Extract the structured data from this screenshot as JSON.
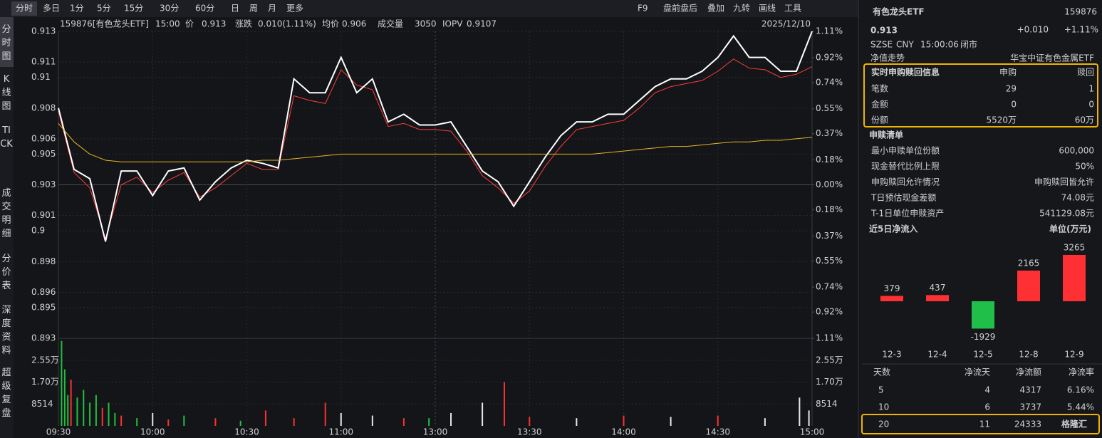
{
  "toolbar": {
    "tabs": [
      "分时",
      "多日",
      "1分",
      "5分",
      "15分",
      "30分",
      "60分",
      "日",
      "周",
      "月",
      "更多"
    ],
    "tools": [
      "F9",
      "盘前盘后",
      "叠加",
      "九转",
      "画线",
      "工具"
    ]
  },
  "side_tabs": [
    "分时图",
    "K线图",
    "TICK",
    "成交明细",
    "分价表",
    "深度资料",
    "超级复盘"
  ],
  "info": {
    "code": "159876[有色龙头ETF]",
    "time": "15:00",
    "fields": [
      {
        "label": "价",
        "value": "0.913"
      },
      {
        "label": "涨跌",
        "value": "0.010(1.11%)"
      },
      {
        "label": "均价",
        "value": "0.906"
      },
      {
        "label": "成交量",
        "value": "3050"
      },
      {
        "label": "IOPV",
        "value": "0.9107"
      }
    ],
    "date": "2025/12/10"
  },
  "chart_data": [
    {
      "type": "line",
      "x": [
        0,
        5,
        10,
        15,
        20,
        25,
        30,
        35,
        40,
        45,
        50,
        55,
        60,
        65,
        70,
        75,
        80,
        85,
        90,
        95,
        100,
        105,
        110,
        115,
        120,
        125,
        130,
        135,
        140,
        145,
        150,
        155,
        160,
        165,
        170,
        175,
        180,
        185,
        190,
        195,
        200,
        205,
        210,
        215,
        220,
        225,
        230,
        235,
        240
      ],
      "xlim": [
        0,
        240
      ],
      "xticks": [
        {
          "value": 0,
          "label": "09:30"
        },
        {
          "value": 30,
          "label": "10:00"
        },
        {
          "value": 60,
          "label": "10:30"
        },
        {
          "value": 90,
          "label": "11:00"
        },
        {
          "value": 120,
          "label": "13:00"
        },
        {
          "value": 150,
          "label": "13:30"
        },
        {
          "value": 180,
          "label": "14:00"
        },
        {
          "value": 210,
          "label": "14:30"
        },
        {
          "value": 240,
          "label": "15:00"
        }
      ],
      "ylim": [
        0.893,
        0.913
      ],
      "yticks": [
        0.913,
        0.911,
        0.91,
        0.908,
        0.906,
        0.905,
        0.903,
        0.901,
        0.9,
        0.898,
        0.896,
        0.895,
        0.893
      ],
      "y2lim": [
        -1.11,
        1.11
      ],
      "y2ticks": [
        {
          "value": 1.11,
          "label": "1.11%"
        },
        {
          "value": 0.92,
          "label": "0.92%"
        },
        {
          "value": 0.74,
          "label": "0.74%"
        },
        {
          "value": 0.55,
          "label": "0.55%"
        },
        {
          "value": 0.37,
          "label": "0.37%"
        },
        {
          "value": 0.18,
          "label": "0.18%"
        },
        {
          "value": 0,
          "label": "0.00%"
        },
        {
          "value": -0.18,
          "label": "0.18%"
        },
        {
          "value": -0.37,
          "label": "0.37%"
        },
        {
          "value": -0.55,
          "label": "0.55%"
        },
        {
          "value": -0.74,
          "label": "0.74%"
        },
        {
          "value": -0.92,
          "label": "0.92%"
        },
        {
          "value": -1.11,
          "label": "1.11%"
        }
      ],
      "grid": true,
      "series": [
        {
          "color": "#ff3b3b",
          "values": [
            0.9078,
            0.9038,
            0.9028,
            0.8995,
            0.903,
            0.9035,
            0.9025,
            0.9033,
            0.9038,
            0.9022,
            0.9028,
            0.9036,
            0.9044,
            0.904,
            0.904,
            0.9088,
            0.9085,
            0.9083,
            0.9105,
            0.9095,
            0.9092,
            0.9068,
            0.907,
            0.9066,
            0.9066,
            0.9065,
            0.9052,
            0.9036,
            0.9028,
            0.9018,
            0.9026,
            0.9042,
            0.9055,
            0.9066,
            0.9068,
            0.907,
            0.9072,
            0.908,
            0.909,
            0.9094,
            0.9096,
            0.9098,
            0.9104,
            0.9112,
            0.9106,
            0.9105,
            0.91,
            0.9102,
            0.9107
          ]
        },
        {
          "color": "#ffffff",
          "values": [
            0.908,
            0.904,
            0.9034,
            0.8993,
            0.9039,
            0.9039,
            0.9023,
            0.9039,
            0.9041,
            0.902,
            0.9032,
            0.9041,
            0.9046,
            0.9044,
            0.9041,
            0.9099,
            0.909,
            0.909,
            0.9113,
            0.909,
            0.9099,
            0.9071,
            0.9076,
            0.9069,
            0.9069,
            0.9071,
            0.9055,
            0.9039,
            0.9032,
            0.9016,
            0.9032,
            0.9048,
            0.9062,
            0.9071,
            0.9071,
            0.9076,
            0.9076,
            0.9085,
            0.9094,
            0.9099,
            0.9099,
            0.9104,
            0.9113,
            0.9127,
            0.9113,
            0.9113,
            0.9104,
            0.9104,
            0.913
          ]
        },
        {
          "color": "#e6b422",
          "values": [
            0.907,
            0.9058,
            0.905,
            0.9046,
            0.9045,
            0.9045,
            0.9045,
            0.9045,
            0.9045,
            0.9045,
            0.9045,
            0.9045,
            0.9045,
            0.9046,
            0.9046,
            0.9047,
            0.9048,
            0.9049,
            0.905,
            0.905,
            0.905,
            0.905,
            0.905,
            0.905,
            0.905,
            0.905,
            0.905,
            0.905,
            0.905,
            0.905,
            0.905,
            0.905,
            0.905,
            0.905,
            0.905,
            0.9051,
            0.9052,
            0.9053,
            0.9054,
            0.9055,
            0.9055,
            0.9056,
            0.9057,
            0.9058,
            0.9058,
            0.9059,
            0.9059,
            0.906,
            0.9061
          ]
        }
      ]
    },
    {
      "type": "bar",
      "x": [
        1,
        2,
        3,
        4,
        6,
        8,
        10,
        12,
        14,
        16,
        18,
        20,
        25,
        30,
        35,
        40,
        50,
        58,
        66,
        75,
        85,
        90,
        100,
        110,
        118,
        125,
        135,
        142,
        150,
        165,
        180,
        195,
        210,
        225,
        236,
        239
      ],
      "values": [
        33000,
        22000,
        12000,
        18000,
        11000,
        14000,
        9000,
        12000,
        7000,
        9000,
        5000,
        4000,
        3000,
        5000,
        2500,
        4000,
        3000,
        2000,
        6000,
        3000,
        9000,
        5000,
        4000,
        3000,
        3000,
        5000,
        9000,
        17000,
        3500,
        3000,
        4000,
        3500,
        4000,
        3000,
        11000,
        6000
      ],
      "colors": [
        "#20c040",
        "#20c040",
        "#20c040",
        "#ff3030",
        "#20c040",
        "#20c040",
        "#20c040",
        "#20c040",
        "#ff3030",
        "#20c040",
        "#20c040",
        "#ff3030",
        "#20c040",
        "#e8e8e8",
        "#ff3030",
        "#20c040",
        "#ff3030",
        "#20c040",
        "#ff3030",
        "#ff3030",
        "#ff3030",
        "#e8e8e8",
        "#e8e8e8",
        "#ff3030",
        "#20c040",
        "#e8e8e8",
        "#e8e8e8",
        "#ff3030",
        "#ff3030",
        "#e8e8e8",
        "#ff3030",
        "#e8e8e8",
        "#ff3030",
        "#e8e8e8",
        "#e8e8e8",
        "#e8e8e8"
      ],
      "ylim": [
        0,
        34056
      ],
      "yticks": [
        {
          "value": 25542,
          "label": "2.55万"
        },
        {
          "value": 17028,
          "label": "1.70万"
        },
        8514
      ]
    },
    {
      "type": "bar",
      "title": "近5日净流入",
      "subtitle": "单位(万元)",
      "categories": [
        "12-3",
        "12-4",
        "12-5",
        "12-8",
        "12-9"
      ],
      "values": [
        379,
        437,
        -1929,
        2165,
        3265
      ],
      "colors": {
        "positive": "#ff3034",
        "negative": "#1fbf4a"
      }
    }
  ],
  "quote": {
    "name": "有色龙头ETF",
    "code": "159876",
    "price": "0.913",
    "change": "+0.010",
    "change_pct": "+1.11%",
    "meta": [
      "SZSE",
      "CNY",
      "15:00:06",
      "闭市"
    ],
    "nav_label": "净值走势",
    "index_name": "华宝中证有色金属ETF"
  },
  "realtime": {
    "header": [
      "实时申购赎回信息",
      "申购",
      "赎回"
    ],
    "rows": [
      [
        "笔数",
        "29",
        "1"
      ],
      [
        "金额",
        "0",
        "0"
      ],
      [
        "份额",
        "5520万",
        "60万"
      ]
    ]
  },
  "list": {
    "title": "申赎清单",
    "rows": [
      [
        "最小申赎单位份额",
        "600,000"
      ],
      [
        "现金替代比例上限",
        "50%"
      ],
      [
        "申购赎回允许情况",
        "申购赎回皆允许"
      ],
      [
        "T日预估现金差额",
        "74.08元"
      ],
      [
        "T-1日单位申赎资产",
        "541129.08元"
      ]
    ]
  },
  "flow_table": {
    "header": [
      "天数",
      "净流天",
      "净流额",
      "净流率"
    ],
    "rows": [
      [
        "5",
        "4",
        "4317",
        "6.16%"
      ],
      [
        "10",
        "6",
        "3737",
        "5.44%"
      ],
      [
        "20",
        "11",
        "24333"
      ]
    ]
  },
  "watermark": "格隆汇"
}
